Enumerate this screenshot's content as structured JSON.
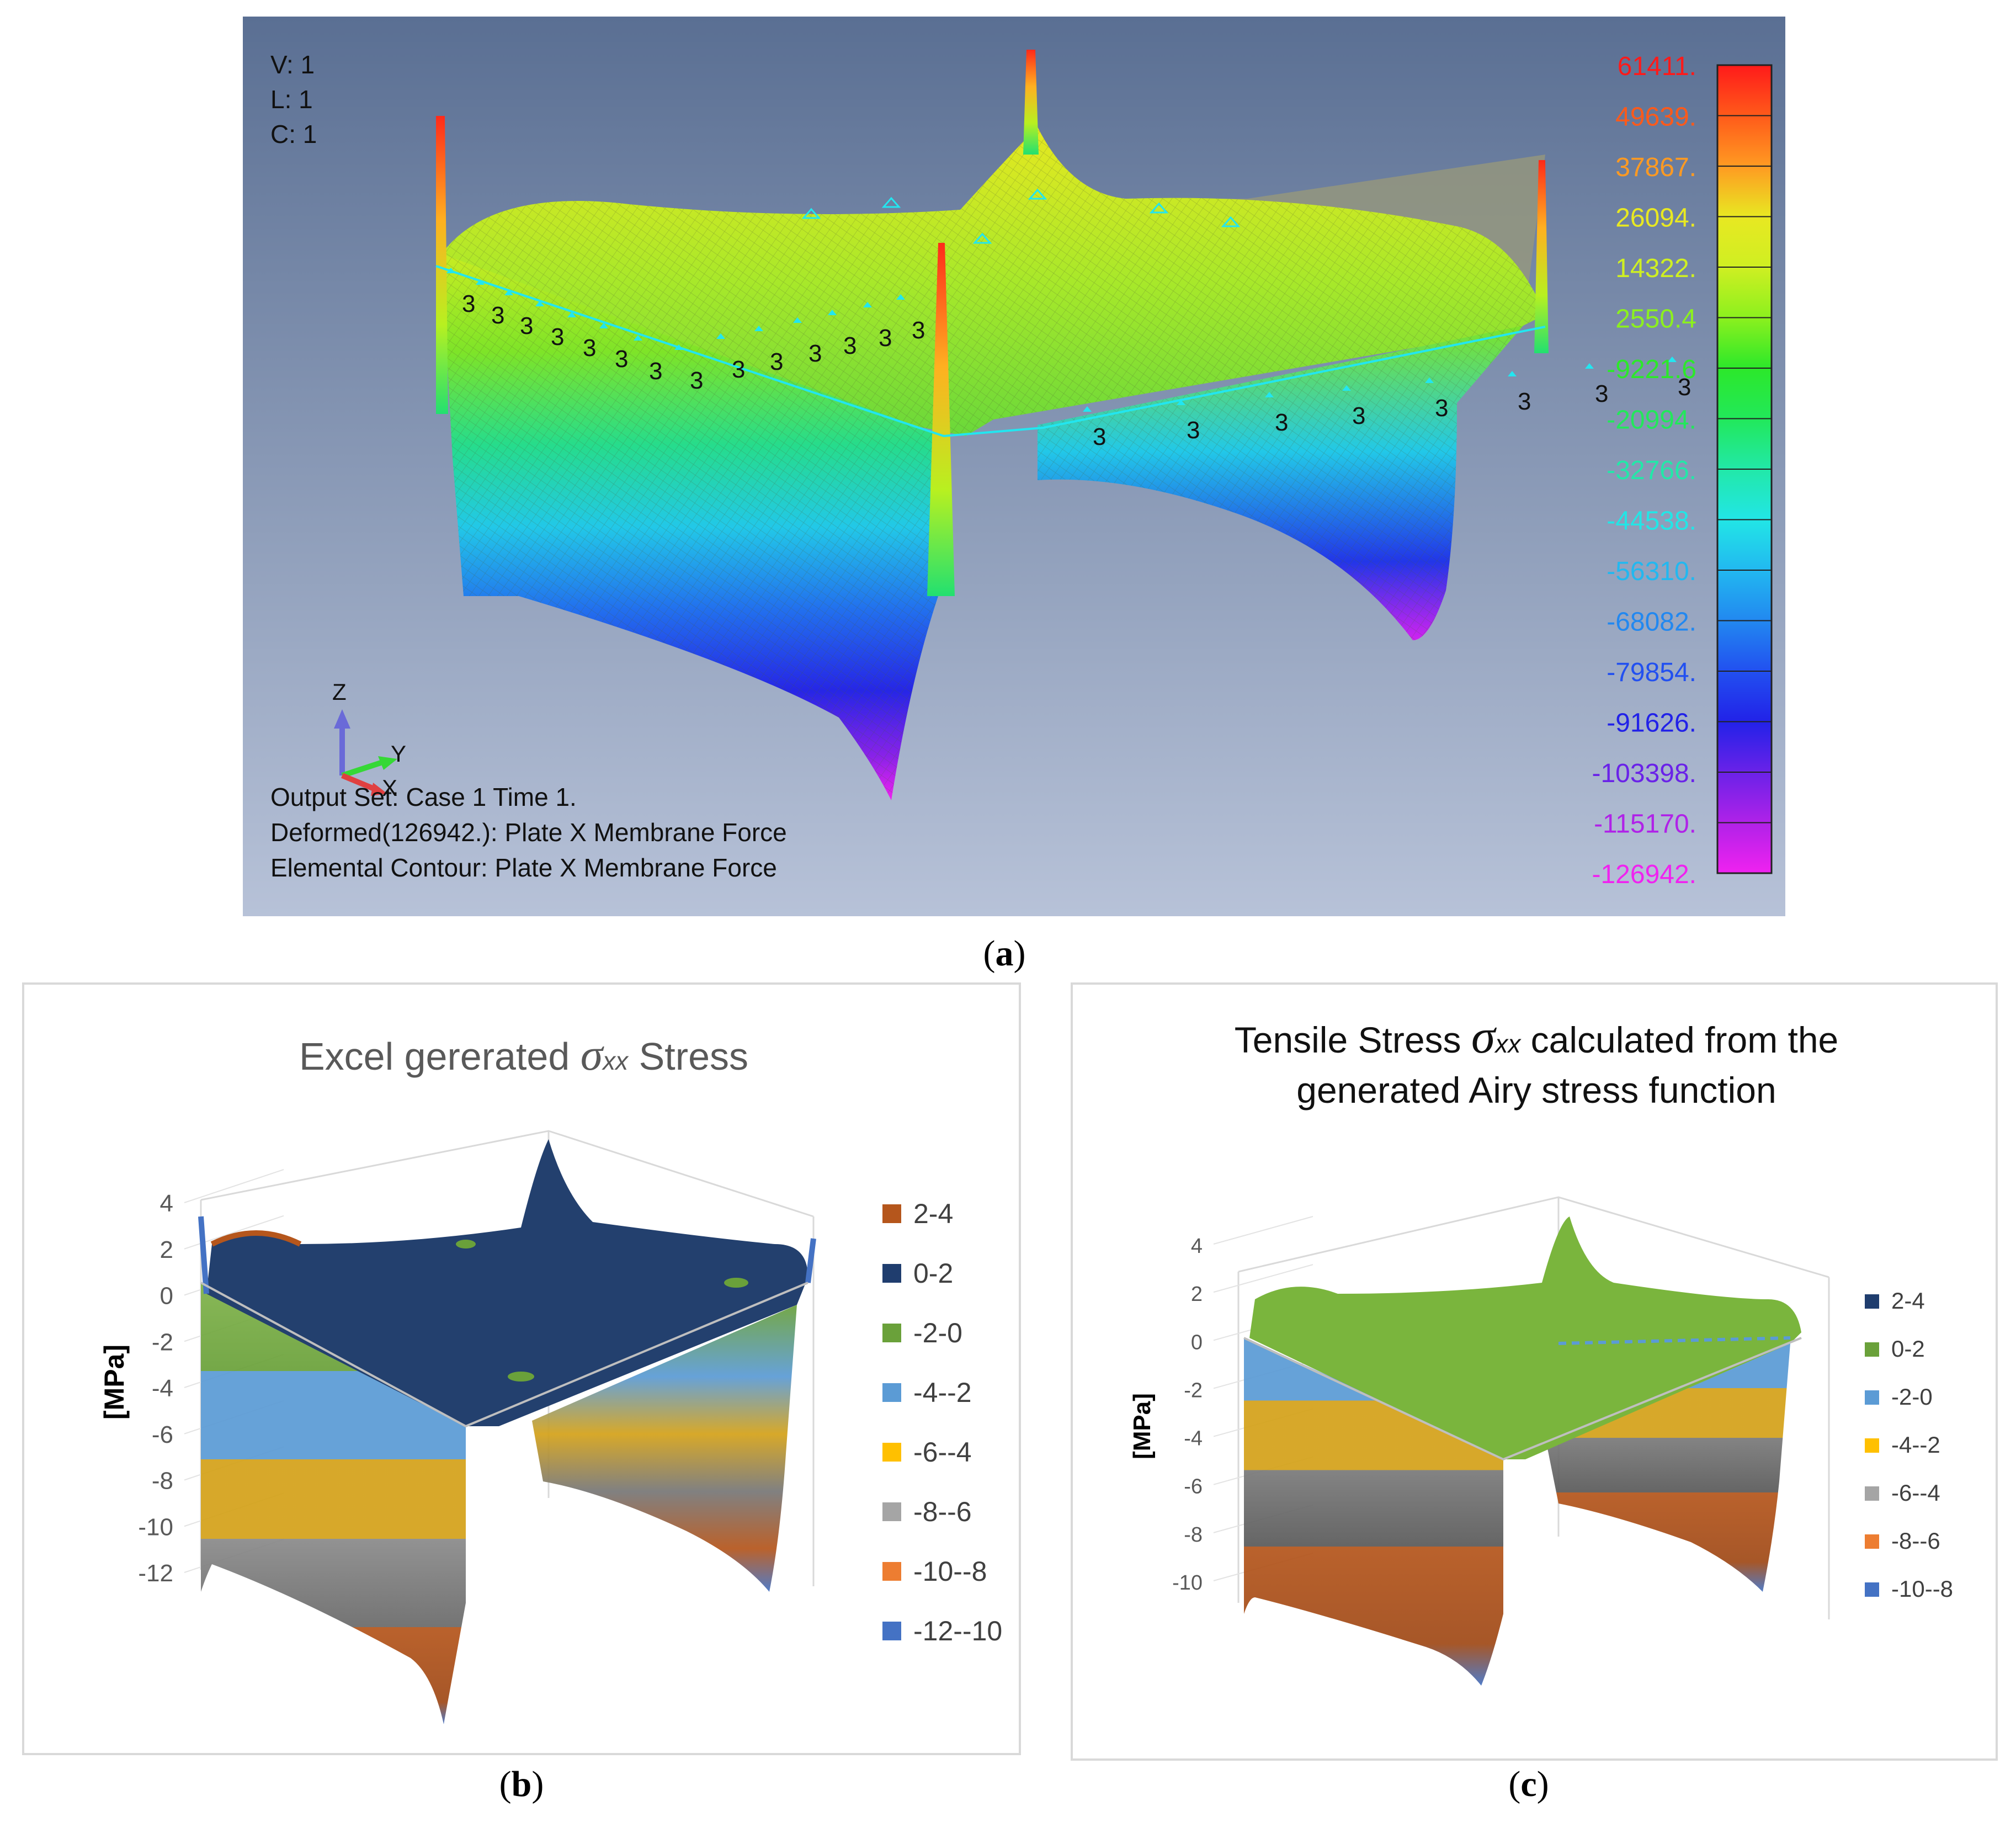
{
  "panel_a": {
    "caption": "a",
    "view_info": [
      "V: 1",
      "L: 1",
      "C: 1"
    ],
    "output_lines": [
      "Output Set: Case 1 Time 1.",
      "Deformed(126942.): Plate X Membrane Force",
      "Elemental Contour: Plate X Membrane Force"
    ],
    "axes": {
      "z": "Z",
      "y": "Y",
      "x": "X"
    },
    "constraint_marker": "3",
    "legend": {
      "values": [
        "61411.",
        "49639.",
        "37867.",
        "26094.",
        "14322.",
        "2550.4",
        "-9221.6",
        "-20994.",
        "-32766.",
        "-44538.",
        "-56310.",
        "-68082.",
        "-79854.",
        "-91626.",
        "-103398.",
        "-115170.",
        "-126942."
      ],
      "colors": [
        "#ff1a1a",
        "#ff5a1a",
        "#ff9a22",
        "#e8e822",
        "#cfef22",
        "#8cf01e",
        "#2ce82a",
        "#22e85a",
        "#22e8a8",
        "#22e6e6",
        "#22b8f0",
        "#2288f0",
        "#2250f0",
        "#2222e8",
        "#6a22e8",
        "#b022e8",
        "#f022f0"
      ]
    },
    "chart_data": {
      "type": "surface",
      "title": "Plate X Membrane Force",
      "zlim": [
        -126942,
        61411
      ],
      "contour_levels": [
        61411,
        49639,
        37867,
        26094,
        14322,
        2550.4,
        -9221.6,
        -20994,
        -32766,
        -44538,
        -56310,
        -68082,
        -79854,
        -91626,
        -103398,
        -115170,
        -126942
      ]
    }
  },
  "panel_b": {
    "caption": "b",
    "title_prefix": "Excel gererated ",
    "title_sigma": "σ",
    "title_sub": "xx",
    "title_suffix": " Stress",
    "ylabel": "[MPa]",
    "chart_data": {
      "type": "surface",
      "zlim": [
        -12,
        4
      ],
      "zticks": [
        "4",
        "2",
        "0",
        "-2",
        "-4",
        "-6",
        "-8",
        "-10",
        "-12"
      ],
      "legend": [
        {
          "label": "2-4",
          "color": "#b5561c"
        },
        {
          "label": "0-2",
          "color": "#1f3d6e"
        },
        {
          "label": "-2-0",
          "color": "#6aa13a"
        },
        {
          "label": "-4--2",
          "color": "#5b9bd5"
        },
        {
          "label": "-6--4",
          "color": "#ffc000"
        },
        {
          "label": "-8--6",
          "color": "#a5a5a5"
        },
        {
          "label": "-10--8",
          "color": "#ed7d31"
        },
        {
          "label": "-12--10",
          "color": "#4472c4"
        }
      ]
    }
  },
  "panel_c": {
    "caption": "c",
    "title_line1_prefix": "Tensile Stress ",
    "title_sigma": "σ",
    "title_sub": "xx",
    "title_line1_suffix": " calculated from the",
    "title_line2": "generated Airy stress function",
    "ylabel": "[MPa]",
    "chart_data": {
      "type": "surface",
      "zlim": [
        -10,
        4
      ],
      "zticks": [
        "4",
        "2",
        "0",
        "-2",
        "-4",
        "-6",
        "-8",
        "-10"
      ],
      "legend": [
        {
          "label": "2-4",
          "color": "#1f3d6e"
        },
        {
          "label": "0-2",
          "color": "#6aa13a"
        },
        {
          "label": "-2-0",
          "color": "#5b9bd5"
        },
        {
          "label": "-4--2",
          "color": "#ffc000"
        },
        {
          "label": "-6--4",
          "color": "#a5a5a5"
        },
        {
          "label": "-8--6",
          "color": "#ed7d31"
        },
        {
          "label": "-10--8",
          "color": "#4472c4"
        }
      ]
    }
  }
}
